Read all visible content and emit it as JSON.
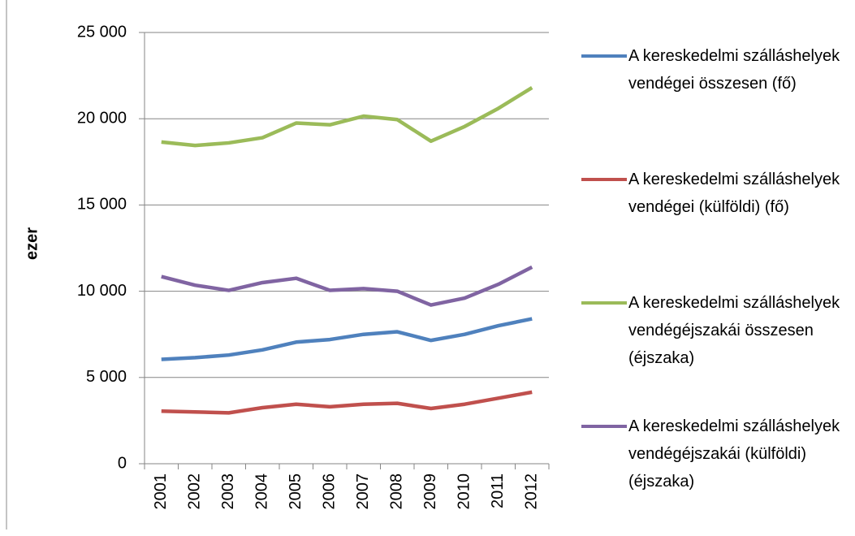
{
  "chart_data": {
    "type": "line",
    "y_label": "ezer",
    "categories": [
      "2001",
      "2002",
      "2003",
      "2004",
      "2005",
      "2006",
      "2007",
      "2008",
      "2009",
      "2010",
      "2011",
      "2012"
    ],
    "series": [
      {
        "name": "A kereskedelmi szálláshelyek vendégei összesen (fő)",
        "color": "#4f81bd",
        "values": [
          6050,
          6150,
          6300,
          6600,
          7050,
          7200,
          7500,
          7650,
          7150,
          7500,
          8000,
          8400
        ]
      },
      {
        "name": "A kereskedelmi szálláshelyek vendégei (külföldi) (fő)",
        "color": "#c0504d",
        "values": [
          3050,
          3000,
          2950,
          3250,
          3450,
          3300,
          3450,
          3500,
          3200,
          3450,
          3800,
          4150
        ]
      },
      {
        "name": "A kereskedelmi szálláshelyek vendégéjszakái összesen (éjszaka)",
        "color": "#9bbb59",
        "values": [
          18650,
          18450,
          18600,
          18900,
          19750,
          19650,
          20150,
          19950,
          18700,
          19550,
          20600,
          21800
        ]
      },
      {
        "name": "A kereskedelmi szálláshelyek vendégéjszakái (külföldi) (éjszaka)",
        "color": "#8064a2",
        "values": [
          10850,
          10350,
          10050,
          10500,
          10750,
          10050,
          10150,
          10000,
          9200,
          9600,
          10400,
          11400
        ]
      }
    ],
    "ylim": [
      0,
      25000
    ],
    "yticks": [
      0,
      {
        "value": 5000,
        "label": "5 000"
      },
      {
        "value": 10000,
        "label": "10 000"
      },
      {
        "value": 15000,
        "label": "15 000"
      },
      {
        "value": 20000,
        "label": "20 000"
      },
      {
        "value": 25000,
        "label": "25 000"
      }
    ],
    "grid": true,
    "legend": "right"
  }
}
